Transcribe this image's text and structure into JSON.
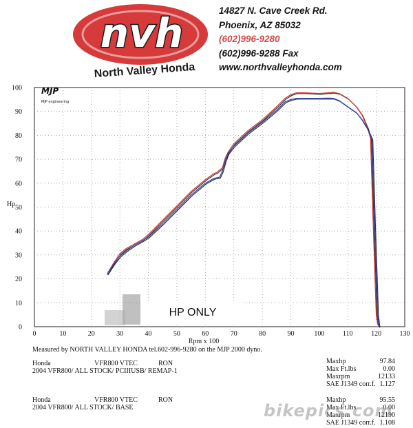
{
  "header": {
    "logo_text": "nvh",
    "dealer_name": "North Valley Honda",
    "address_line1": "14827 N. Cave Creek Rd.",
    "address_line2": "Phoenix, AZ 85032",
    "phone": "(602)996-9280",
    "fax": "(602)996-9288 Fax",
    "website": "www.northvalleyhonda.com"
  },
  "chart_data": {
    "type": "line",
    "title": "",
    "xlabel": "Rpm x 100",
    "ylabel": "Hp",
    "xlim": [
      0,
      130
    ],
    "ylim": [
      0,
      100
    ],
    "xticks": [
      0,
      10,
      20,
      30,
      40,
      50,
      60,
      70,
      80,
      90,
      100,
      110,
      120,
      130
    ],
    "yticks": [
      0,
      10,
      20,
      30,
      40,
      50,
      60,
      70,
      80,
      90,
      100
    ],
    "grid": true,
    "brand_text": "MJP engineering",
    "annotation": "HP ONLY",
    "colors": {
      "run1": "#d63a2e",
      "run2": "#2b47b8",
      "trace": "#111111"
    },
    "series": [
      {
        "color_role": "run1",
        "x": [
          25.5,
          28,
          30,
          32,
          35,
          38,
          40,
          45,
          50,
          55,
          60,
          63,
          64,
          66,
          67,
          68,
          70,
          75,
          80,
          85,
          88,
          90,
          92,
          95,
          100,
          103,
          105,
          107,
          110,
          113,
          115,
          117,
          118,
          119,
          120,
          120.5,
          121
        ],
        "y": [
          22,
          27,
          30.5,
          32.5,
          34.5,
          36.5,
          38.5,
          44.5,
          50.5,
          56.5,
          61.5,
          64,
          64.5,
          66.5,
          70.5,
          73,
          76.5,
          82,
          86.5,
          92,
          95.5,
          97,
          97.8,
          97.8,
          97.5,
          97.8,
          98,
          97.5,
          95.5,
          92,
          88.5,
          83,
          78.5,
          40,
          5,
          1,
          0
        ]
      },
      {
        "color_role": "run2",
        "x": [
          25.5,
          28,
          30,
          32,
          35,
          38,
          40,
          45,
          50,
          55,
          60,
          63,
          65,
          66,
          67,
          68,
          70,
          75,
          80,
          85,
          88,
          90,
          92,
          95,
          100,
          103,
          105,
          107,
          110,
          113,
          115,
          117,
          118.5,
          119.5,
          120.5,
          121
        ],
        "y": [
          22,
          26.5,
          29.5,
          31.5,
          34,
          36,
          37.5,
          43,
          49,
          55,
          60,
          62,
          62.5,
          65,
          69.5,
          72.5,
          75.5,
          81,
          85.5,
          90.5,
          94,
          95,
          95.5,
          95.5,
          95.5,
          95.55,
          95.5,
          94.5,
          92,
          89.5,
          86.5,
          82.5,
          78.5,
          40,
          5,
          0
        ]
      }
    ]
  },
  "footer": {
    "measured_text": "Measured by NORTH VALLEY  HONDA tel.602-996-9280 on the MJP 2000 dyno.",
    "runs": [
      {
        "make": "Honda",
        "model": "VFR800 VTEC",
        "rider": "RON",
        "description": "2004 VFR800/ ALL STOCK/ PCIIIUSB/ REMAP-1",
        "stats": [
          {
            "label": "Maxhp",
            "value": "97.84"
          },
          {
            "label": "Max Ft.lbs",
            "value": "0.00"
          },
          {
            "label": "Maxrpm",
            "value": "12133"
          },
          {
            "label": "SAE J1349 corr.f.",
            "value": "1.127"
          }
        ]
      },
      {
        "make": "Honda",
        "model": "VFR800 VTEC",
        "rider": "RON",
        "description": "2004 VFR800/ ALL STOCK/ BASE",
        "stats": [
          {
            "label": "Maxhp",
            "value": "95.55"
          },
          {
            "label": "Max Ft.lbs",
            "value": "0.00"
          },
          {
            "label": "Maxrpm",
            "value": "12190"
          },
          {
            "label": "SAE J1349 corr.f.",
            "value": "1.108"
          }
        ]
      }
    ],
    "watermark": "bikepics.com"
  }
}
